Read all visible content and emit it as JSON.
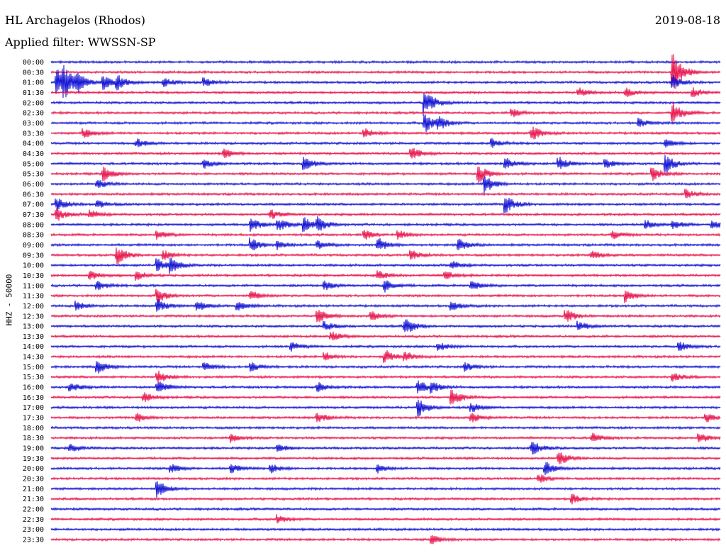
{
  "header": {
    "station": "HL Archagelos (Rhodos)",
    "date": "2019-08-18",
    "filter": "Applied filter: WWSSN-SP",
    "channel": "HHZ - 50000"
  },
  "colors": {
    "trace_a": "#1414d4",
    "trace_b": "#e8174f",
    "text": "#000000",
    "background": "#ffffff"
  },
  "chart_data": {
    "type": "line",
    "title": "HL Archagelos (Rhodos)",
    "subtitle": "Applied filter: WWSSN-SP",
    "ylabel": "HHZ - 50000",
    "xlabel": "",
    "grid": false,
    "legend": "none",
    "series_pattern": "alternating blue / red traces, one per 30-minute row",
    "rows": [
      {
        "label": "00:00",
        "color": "blue",
        "events": []
      },
      {
        "label": "00:30",
        "color": "red",
        "events": [
          {
            "t": 0.93,
            "a": 5
          }
        ]
      },
      {
        "label": "01:00",
        "color": "blue",
        "events": [
          {
            "t": 0.01,
            "a": 3
          },
          {
            "t": 0.02,
            "a": 3
          },
          {
            "t": 0.04,
            "a": 2
          },
          {
            "t": 0.08,
            "a": 1.5
          },
          {
            "t": 0.1,
            "a": 1.5
          },
          {
            "t": 0.17,
            "a": 1
          },
          {
            "t": 0.23,
            "a": 1
          },
          {
            "t": 0.93,
            "a": 1.5
          }
        ]
      },
      {
        "label": "01:30",
        "color": "red",
        "events": [
          {
            "t": 0.79,
            "a": 1
          },
          {
            "t": 0.86,
            "a": 1
          },
          {
            "t": 0.96,
            "a": 1
          }
        ]
      },
      {
        "label": "02:00",
        "color": "blue",
        "events": [
          {
            "t": 0.56,
            "a": 3
          }
        ]
      },
      {
        "label": "02:30",
        "color": "red",
        "events": [
          {
            "t": 0.69,
            "a": 1
          },
          {
            "t": 0.93,
            "a": 2.5
          }
        ]
      },
      {
        "label": "03:00",
        "color": "blue",
        "events": [
          {
            "t": 0.56,
            "a": 2
          },
          {
            "t": 0.58,
            "a": 1.5
          },
          {
            "t": 0.88,
            "a": 1
          }
        ]
      },
      {
        "label": "03:30",
        "color": "red",
        "events": [
          {
            "t": 0.05,
            "a": 1
          },
          {
            "t": 0.47,
            "a": 1
          },
          {
            "t": 0.72,
            "a": 1.5
          }
        ]
      },
      {
        "label": "04:00",
        "color": "blue",
        "events": [
          {
            "t": 0.13,
            "a": 1
          },
          {
            "t": 0.66,
            "a": 1
          },
          {
            "t": 0.92,
            "a": 1
          }
        ]
      },
      {
        "label": "04:30",
        "color": "red",
        "events": [
          {
            "t": 0.26,
            "a": 1
          },
          {
            "t": 0.54,
            "a": 1.5
          }
        ]
      },
      {
        "label": "05:00",
        "color": "blue",
        "events": [
          {
            "t": 0.23,
            "a": 1
          },
          {
            "t": 0.38,
            "a": 1.5
          },
          {
            "t": 0.68,
            "a": 1.5
          },
          {
            "t": 0.76,
            "a": 1.5
          },
          {
            "t": 0.83,
            "a": 1
          },
          {
            "t": 0.92,
            "a": 2
          }
        ]
      },
      {
        "label": "05:30",
        "color": "red",
        "events": [
          {
            "t": 0.08,
            "a": 1.5
          },
          {
            "t": 0.64,
            "a": 2
          },
          {
            "t": 0.9,
            "a": 1.5
          }
        ]
      },
      {
        "label": "06:00",
        "color": "blue",
        "events": [
          {
            "t": 0.07,
            "a": 1
          },
          {
            "t": 0.65,
            "a": 2
          }
        ]
      },
      {
        "label": "06:30",
        "color": "red",
        "events": [
          {
            "t": 0.95,
            "a": 1
          }
        ]
      },
      {
        "label": "07:00",
        "color": "blue",
        "events": [
          {
            "t": 0.01,
            "a": 1.5
          },
          {
            "t": 0.07,
            "a": 1
          },
          {
            "t": 0.68,
            "a": 2
          }
        ]
      },
      {
        "label": "07:30",
        "color": "red",
        "events": [
          {
            "t": 0.01,
            "a": 1.5
          },
          {
            "t": 0.06,
            "a": 1
          },
          {
            "t": 0.33,
            "a": 1
          }
        ]
      },
      {
        "label": "08:00",
        "color": "blue",
        "events": [
          {
            "t": 0.3,
            "a": 1.5
          },
          {
            "t": 0.34,
            "a": 1.5
          },
          {
            "t": 0.38,
            "a": 1.5
          },
          {
            "t": 0.4,
            "a": 1.5
          },
          {
            "t": 0.89,
            "a": 1
          },
          {
            "t": 0.93,
            "a": 1
          },
          {
            "t": 0.99,
            "a": 1
          }
        ]
      },
      {
        "label": "08:30",
        "color": "red",
        "events": [
          {
            "t": 0.16,
            "a": 1
          },
          {
            "t": 0.47,
            "a": 1
          },
          {
            "t": 0.52,
            "a": 1
          },
          {
            "t": 0.84,
            "a": 1
          }
        ]
      },
      {
        "label": "09:00",
        "color": "blue",
        "events": [
          {
            "t": 0.3,
            "a": 1.5
          },
          {
            "t": 0.34,
            "a": 1
          },
          {
            "t": 0.4,
            "a": 1
          },
          {
            "t": 0.49,
            "a": 1.5
          },
          {
            "t": 0.61,
            "a": 1.5
          }
        ]
      },
      {
        "label": "09:30",
        "color": "red",
        "events": [
          {
            "t": 0.1,
            "a": 2
          },
          {
            "t": 0.17,
            "a": 1
          },
          {
            "t": 0.54,
            "a": 1
          },
          {
            "t": 0.81,
            "a": 1
          }
        ]
      },
      {
        "label": "10:00",
        "color": "blue",
        "events": [
          {
            "t": 0.16,
            "a": 1.5
          },
          {
            "t": 0.18,
            "a": 1.5
          },
          {
            "t": 0.6,
            "a": 1
          }
        ]
      },
      {
        "label": "10:30",
        "color": "red",
        "events": [
          {
            "t": 0.06,
            "a": 1
          },
          {
            "t": 0.13,
            "a": 1
          },
          {
            "t": 0.49,
            "a": 1
          },
          {
            "t": 0.59,
            "a": 1
          }
        ]
      },
      {
        "label": "11:00",
        "color": "blue",
        "events": [
          {
            "t": 0.07,
            "a": 1
          },
          {
            "t": 0.41,
            "a": 1
          },
          {
            "t": 0.5,
            "a": 1.5
          },
          {
            "t": 0.63,
            "a": 1
          }
        ]
      },
      {
        "label": "11:30",
        "color": "red",
        "events": [
          {
            "t": 0.16,
            "a": 1.5
          },
          {
            "t": 0.3,
            "a": 1
          },
          {
            "t": 0.86,
            "a": 1.5
          }
        ]
      },
      {
        "label": "12:00",
        "color": "blue",
        "events": [
          {
            "t": 0.04,
            "a": 1
          },
          {
            "t": 0.16,
            "a": 1.5
          },
          {
            "t": 0.22,
            "a": 1
          },
          {
            "t": 0.28,
            "a": 1
          },
          {
            "t": 0.6,
            "a": 1
          }
        ]
      },
      {
        "label": "12:30",
        "color": "red",
        "events": [
          {
            "t": 0.4,
            "a": 1.5
          },
          {
            "t": 0.48,
            "a": 1
          },
          {
            "t": 0.77,
            "a": 1.5
          }
        ]
      },
      {
        "label": "13:00",
        "color": "blue",
        "events": [
          {
            "t": 0.41,
            "a": 1
          },
          {
            "t": 0.53,
            "a": 2
          },
          {
            "t": 0.79,
            "a": 1
          }
        ]
      },
      {
        "label": "13:30",
        "color": "red",
        "events": [
          {
            "t": 0.42,
            "a": 1
          }
        ]
      },
      {
        "label": "14:00",
        "color": "blue",
        "events": [
          {
            "t": 0.36,
            "a": 1
          },
          {
            "t": 0.58,
            "a": 1
          },
          {
            "t": 0.94,
            "a": 1
          }
        ]
      },
      {
        "label": "14:30",
        "color": "red",
        "events": [
          {
            "t": 0.41,
            "a": 1
          },
          {
            "t": 0.5,
            "a": 1.5
          },
          {
            "t": 0.53,
            "a": 1
          }
        ]
      },
      {
        "label": "15:00",
        "color": "blue",
        "events": [
          {
            "t": 0.07,
            "a": 1.5
          },
          {
            "t": 0.23,
            "a": 1
          },
          {
            "t": 0.3,
            "a": 1
          },
          {
            "t": 0.62,
            "a": 1
          }
        ]
      },
      {
        "label": "15:30",
        "color": "red",
        "events": [
          {
            "t": 0.16,
            "a": 1.5
          },
          {
            "t": 0.93,
            "a": 1
          }
        ]
      },
      {
        "label": "16:00",
        "color": "blue",
        "events": [
          {
            "t": 0.03,
            "a": 1
          },
          {
            "t": 0.16,
            "a": 1.5
          },
          {
            "t": 0.4,
            "a": 1
          },
          {
            "t": 0.55,
            "a": 1.5
          },
          {
            "t": 0.57,
            "a": 1
          }
        ]
      },
      {
        "label": "16:30",
        "color": "red",
        "events": [
          {
            "t": 0.14,
            "a": 1
          },
          {
            "t": 0.6,
            "a": 2
          }
        ]
      },
      {
        "label": "17:00",
        "color": "blue",
        "events": [
          {
            "t": 0.55,
            "a": 2
          },
          {
            "t": 0.63,
            "a": 1
          }
        ]
      },
      {
        "label": "17:30",
        "color": "red",
        "events": [
          {
            "t": 0.13,
            "a": 1
          },
          {
            "t": 0.4,
            "a": 1
          },
          {
            "t": 0.63,
            "a": 1
          },
          {
            "t": 0.98,
            "a": 1
          }
        ]
      },
      {
        "label": "18:00",
        "color": "blue",
        "events": []
      },
      {
        "label": "18:30",
        "color": "red",
        "events": [
          {
            "t": 0.27,
            "a": 1
          },
          {
            "t": 0.81,
            "a": 1
          },
          {
            "t": 0.97,
            "a": 1
          }
        ]
      },
      {
        "label": "19:00",
        "color": "blue",
        "events": [
          {
            "t": 0.03,
            "a": 1
          },
          {
            "t": 0.34,
            "a": 1
          },
          {
            "t": 0.72,
            "a": 1.5
          }
        ]
      },
      {
        "label": "19:30",
        "color": "red",
        "events": [
          {
            "t": 0.76,
            "a": 1.5
          }
        ]
      },
      {
        "label": "20:00",
        "color": "blue",
        "events": [
          {
            "t": 0.18,
            "a": 1
          },
          {
            "t": 0.27,
            "a": 1
          },
          {
            "t": 0.33,
            "a": 1
          },
          {
            "t": 0.49,
            "a": 1
          },
          {
            "t": 0.74,
            "a": 1.5
          }
        ]
      },
      {
        "label": "20:30",
        "color": "red",
        "events": [
          {
            "t": 0.73,
            "a": 1
          }
        ]
      },
      {
        "label": "21:00",
        "color": "blue",
        "events": [
          {
            "t": 0.16,
            "a": 2
          }
        ]
      },
      {
        "label": "21:30",
        "color": "red",
        "events": [
          {
            "t": 0.78,
            "a": 1
          }
        ]
      },
      {
        "label": "22:00",
        "color": "blue",
        "events": []
      },
      {
        "label": "22:30",
        "color": "red",
        "events": [
          {
            "t": 0.34,
            "a": 1
          }
        ]
      },
      {
        "label": "23:00",
        "color": "blue",
        "events": []
      },
      {
        "label": "23:30",
        "color": "red",
        "events": [
          {
            "t": 0.57,
            "a": 1
          }
        ]
      }
    ]
  }
}
